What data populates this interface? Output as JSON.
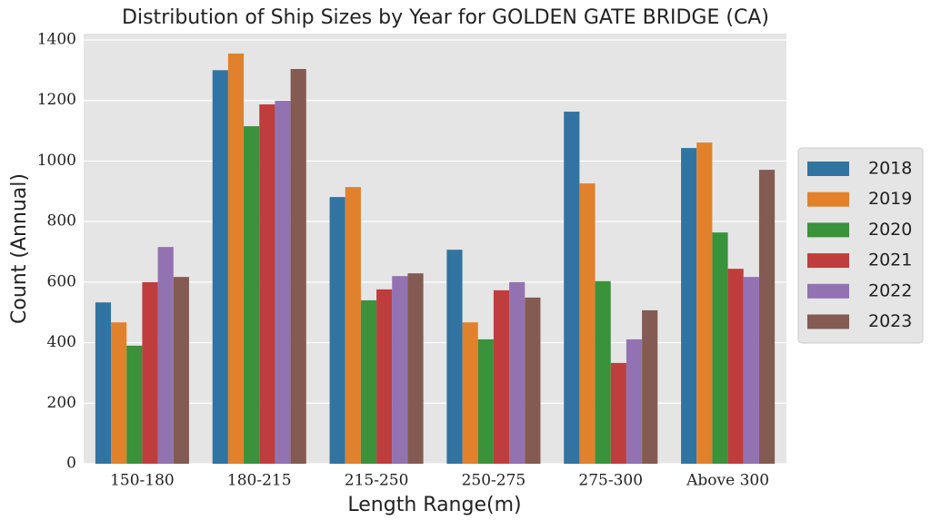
{
  "chart_data": {
    "type": "bar",
    "title": "Distribution of Ship Sizes by Year for GOLDEN GATE BRIDGE (CA)",
    "x_label": "Length Range(m)",
    "y_label": "Count (Annual)",
    "categories": [
      "150-180",
      "180-215",
      "215-250",
      "250-275",
      "275-300",
      "Above 300"
    ],
    "series": [
      {
        "name": "2018",
        "color": "#3274a1",
        "values": [
          533,
          1300,
          881,
          707,
          1163,
          1043
        ]
      },
      {
        "name": "2019",
        "color": "#e1812c",
        "values": [
          467,
          1355,
          914,
          467,
          926,
          1061
        ]
      },
      {
        "name": "2020",
        "color": "#3a923a",
        "values": [
          390,
          1115,
          540,
          411,
          603,
          764
        ]
      },
      {
        "name": "2021",
        "color": "#c03d3e",
        "values": [
          600,
          1187,
          576,
          573,
          333,
          644
        ]
      },
      {
        "name": "2022",
        "color": "#9372b2",
        "values": [
          716,
          1199,
          620,
          600,
          411,
          617
        ]
      },
      {
        "name": "2023",
        "color": "#845b53",
        "values": [
          617,
          1304,
          629,
          549,
          507,
          971
        ]
      }
    ],
    "ylim": [
      0,
      1400
    ],
    "yticks": [
      0,
      200,
      400,
      600,
      800,
      1000,
      1200,
      1400
    ],
    "grid": true,
    "legend": "right"
  }
}
